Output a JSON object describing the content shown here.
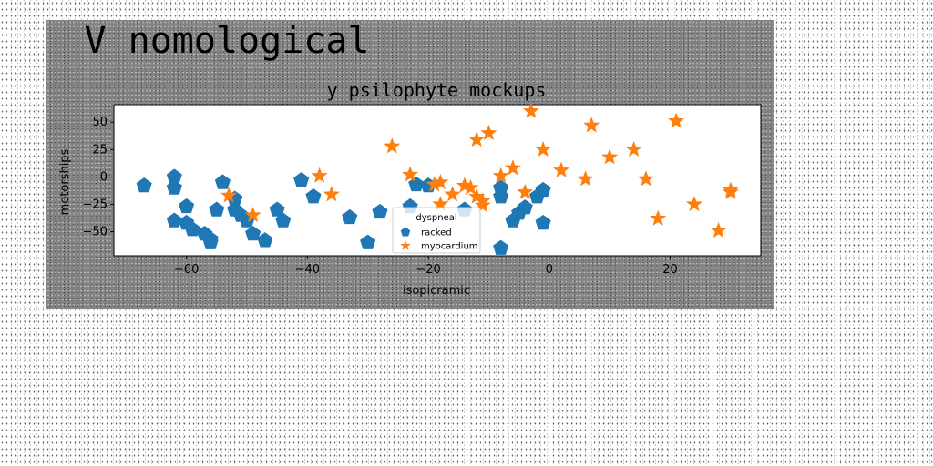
{
  "figure": {
    "suptitle": "V nomological"
  },
  "chart_data": {
    "type": "scatter",
    "title": "y psilophyte mockups",
    "xlabel": "isopicramic",
    "ylabel": "motorships",
    "xlim": [
      -72,
      35
    ],
    "ylim": [
      -72,
      66
    ],
    "xticks": [
      -60,
      -40,
      -20,
      0,
      20
    ],
    "yticks": [
      50,
      25,
      0,
      -25,
      -50
    ],
    "grid": false,
    "legend": {
      "title": "dyspneal",
      "placement": "lower-center"
    },
    "series": [
      {
        "name": "racked",
        "marker": "pentagon",
        "color": "#1f77b4",
        "points": [
          [
            -67,
            -8
          ],
          [
            -62,
            0
          ],
          [
            -62,
            -10
          ],
          [
            -62,
            -40
          ],
          [
            -60,
            -42
          ],
          [
            -60,
            -27
          ],
          [
            -59,
            -48
          ],
          [
            -57,
            -52
          ],
          [
            -56,
            -57
          ],
          [
            -56,
            -60
          ],
          [
            -55,
            -30
          ],
          [
            -54,
            -5
          ],
          [
            -52,
            -20
          ],
          [
            -52,
            -30
          ],
          [
            -51,
            -35
          ],
          [
            -50,
            -40
          ],
          [
            -49,
            -52
          ],
          [
            -47,
            -58
          ],
          [
            -45,
            -30
          ],
          [
            -44,
            -40
          ],
          [
            -41,
            -3
          ],
          [
            -39,
            -18
          ],
          [
            -33,
            -37
          ],
          [
            -30,
            -60
          ],
          [
            -28,
            -32
          ],
          [
            -23,
            -27
          ],
          [
            -22,
            -7
          ],
          [
            -20,
            -8
          ],
          [
            -14,
            -30
          ],
          [
            -8,
            -10
          ],
          [
            -8,
            -18
          ],
          [
            -8,
            -65
          ],
          [
            -6,
            -40
          ],
          [
            -5,
            -33
          ],
          [
            -4,
            -28
          ],
          [
            -2,
            -18
          ],
          [
            -1,
            -12
          ],
          [
            -1,
            -42
          ]
        ]
      },
      {
        "name": "myocardium",
        "marker": "star",
        "color": "#ff7f0e",
        "points": [
          [
            -53,
            -17
          ],
          [
            -49,
            -35
          ],
          [
            -38,
            1
          ],
          [
            -36,
            -16
          ],
          [
            -26,
            28
          ],
          [
            -23,
            2
          ],
          [
            -19,
            -7
          ],
          [
            -18,
            -5
          ],
          [
            -18,
            -25
          ],
          [
            -16,
            -16
          ],
          [
            -14,
            -8
          ],
          [
            -13,
            -10
          ],
          [
            -12,
            34
          ],
          [
            -12,
            -18
          ],
          [
            -11,
            -22
          ],
          [
            -11,
            -26
          ],
          [
            -10,
            40
          ],
          [
            -8,
            1
          ],
          [
            -6,
            8
          ],
          [
            -4,
            -14
          ],
          [
            -3,
            60
          ],
          [
            -1,
            25
          ],
          [
            2,
            6
          ],
          [
            6,
            -2
          ],
          [
            7,
            47
          ],
          [
            10,
            18
          ],
          [
            14,
            25
          ],
          [
            16,
            -2
          ],
          [
            18,
            -38
          ],
          [
            21,
            51
          ],
          [
            24,
            -25
          ],
          [
            28,
            -49
          ],
          [
            30,
            -14
          ],
          [
            30,
            -12
          ]
        ]
      }
    ]
  }
}
